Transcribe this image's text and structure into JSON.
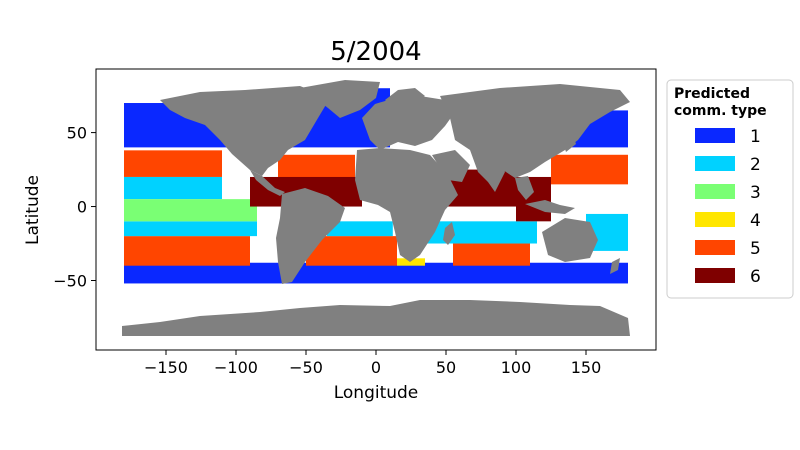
{
  "chart_data": {
    "type": "heatmap",
    "title": "5/2004",
    "xlabel": "Longitude",
    "ylabel": "Latitude",
    "xlim": [
      -200,
      200
    ],
    "ylim": [
      -97,
      93
    ],
    "xticks": [
      -150,
      -100,
      -50,
      0,
      50,
      100,
      150
    ],
    "yticks": [
      -50,
      0,
      50
    ],
    "xtick_labels": [
      "−150",
      "−100",
      "−50",
      "0",
      "50",
      "100",
      "150"
    ],
    "ytick_labels": [
      "−50",
      "0",
      "50"
    ],
    "grid": false,
    "legend": {
      "title_lines": [
        "Predicted",
        "comm. type"
      ],
      "placement": "outside-right",
      "entries": [
        {
          "label": "1",
          "color": "#0a28ff"
        },
        {
          "label": "2",
          "color": "#00d2ff"
        },
        {
          "label": "3",
          "color": "#7aff74"
        },
        {
          "label": "4",
          "color": "#ffe600"
        },
        {
          "label": "5",
          "color": "#ff4500"
        },
        {
          "label": "6",
          "color": "#7f0000"
        }
      ]
    },
    "land_color": "#808080",
    "regions": [
      {
        "type": "1",
        "lon": [
          -180,
          180
        ],
        "lat": [
          -52,
          -38
        ]
      },
      {
        "type": "1",
        "lon": [
          -180,
          -70
        ],
        "lat": [
          40,
          70
        ]
      },
      {
        "type": "1",
        "lon": [
          -60,
          10
        ],
        "lat": [
          40,
          80
        ]
      },
      {
        "type": "1",
        "lon": [
          140,
          180
        ],
        "lat": [
          40,
          65
        ]
      },
      {
        "type": "5",
        "lon": [
          -180,
          -90
        ],
        "lat": [
          -40,
          -20
        ]
      },
      {
        "type": "5",
        "lon": [
          -180,
          -110
        ],
        "lat": [
          20,
          38
        ]
      },
      {
        "type": "5",
        "lon": [
          -70,
          -15
        ],
        "lat": [
          15,
          35
        ]
      },
      {
        "type": "5",
        "lon": [
          -50,
          15
        ],
        "lat": [
          -40,
          -20
        ]
      },
      {
        "type": "5",
        "lon": [
          55,
          110
        ],
        "lat": [
          -40,
          -25
        ]
      },
      {
        "type": "5",
        "lon": [
          125,
          180
        ],
        "lat": [
          15,
          35
        ]
      },
      {
        "type": "2",
        "lon": [
          -180,
          -85
        ],
        "lat": [
          -20,
          -10
        ]
      },
      {
        "type": "2",
        "lon": [
          -180,
          -110
        ],
        "lat": [
          5,
          20
        ]
      },
      {
        "type": "2",
        "lon": [
          -35,
          12
        ],
        "lat": [
          -20,
          -10
        ]
      },
      {
        "type": "2",
        "lon": [
          35,
          115
        ],
        "lat": [
          -25,
          -10
        ]
      },
      {
        "type": "2",
        "lon": [
          150,
          180
        ],
        "lat": [
          -30,
          -5
        ]
      },
      {
        "type": "3",
        "lon": [
          -180,
          -85
        ],
        "lat": [
          -10,
          5
        ]
      },
      {
        "type": "6",
        "lon": [
          -90,
          -10
        ],
        "lat": [
          0,
          20
        ]
      },
      {
        "type": "6",
        "lon": [
          45,
          100
        ],
        "lat": [
          0,
          25
        ]
      },
      {
        "type": "6",
        "lon": [
          100,
          125
        ],
        "lat": [
          -10,
          20
        ]
      },
      {
        "type": "4",
        "lon": [
          15,
          35
        ],
        "lat": [
          -40,
          -35
        ]
      }
    ]
  }
}
